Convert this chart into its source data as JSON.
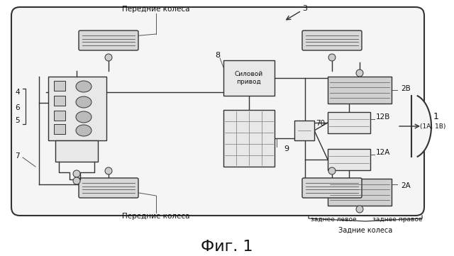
{
  "title": "Фиг. 1",
  "bg": "#ffffff",
  "label_front_top": "Передние колеса",
  "label_front_bot": "Передние колеса",
  "label_rear_left": "заднее левое",
  "label_rear_right": "заднее правое",
  "label_rear_wheels": "Задние колеса",
  "label_power": "Силовой\nпривод"
}
